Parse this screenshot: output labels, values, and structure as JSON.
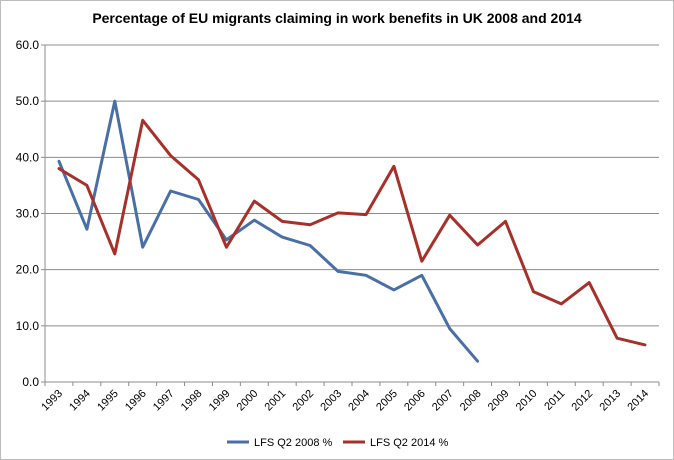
{
  "chart_data": {
    "type": "line",
    "title": "Percentage of EU migrants claiming in work benefits in UK 2008  and 2014",
    "xlabel": "",
    "ylabel": "",
    "ylim": [
      0,
      60
    ],
    "yticks": [
      "0.0",
      "10.0",
      "20.0",
      "30.0",
      "40.0",
      "50.0",
      "60.0"
    ],
    "ytick_values": [
      0,
      10,
      20,
      30,
      40,
      50,
      60
    ],
    "categories": [
      "1993",
      "1994",
      "1995",
      "1996",
      "1997",
      "1998",
      "1999",
      "2000",
      "2001",
      "2002",
      "2003",
      "2004",
      "2005",
      "2006",
      "2007",
      "2008",
      "2009",
      "2010",
      "2011",
      "2012",
      "2013",
      "2014"
    ],
    "grid": "horizontal",
    "legend_position": "bottom",
    "series": [
      {
        "name": "LFS Q2 2008 %",
        "color": "#4a6fa5",
        "values": [
          39.3,
          27.2,
          50.0,
          24.0,
          34.0,
          32.5,
          25.3,
          28.8,
          25.8,
          24.3,
          19.7,
          19.0,
          16.4,
          19.0,
          9.5,
          3.7,
          null,
          null,
          null,
          null,
          null,
          null
        ]
      },
      {
        "name": "LFS Q2 2014 %",
        "color": "#a8302b",
        "values": [
          38.0,
          35.0,
          22.8,
          46.6,
          40.3,
          36.0,
          24.0,
          32.2,
          28.6,
          28.0,
          30.1,
          29.8,
          38.4,
          21.5,
          29.7,
          24.4,
          28.6,
          16.1,
          13.9,
          17.7,
          7.8,
          6.6
        ]
      }
    ]
  }
}
